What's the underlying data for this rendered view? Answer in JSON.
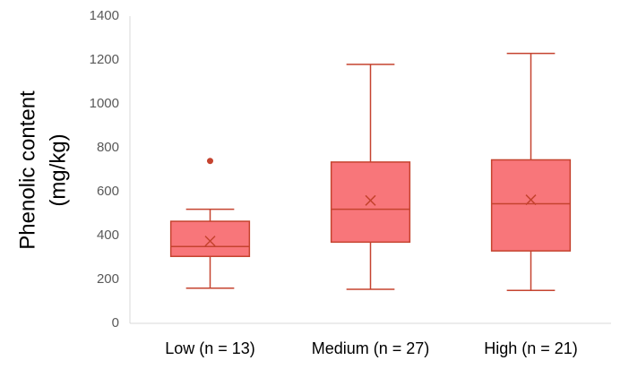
{
  "chart_data": {
    "type": "box",
    "y_label": [
      "Phenolic content",
      "(mg/kg)"
    ],
    "categories": [
      "Low (n = 13)",
      "Medium (n = 27)",
      "High (n = 21)"
    ],
    "boxes": [
      {
        "min": 160,
        "q1": 305,
        "median": 350,
        "q3": 465,
        "max": 520,
        "mean": 375,
        "outliers": [
          740
        ]
      },
      {
        "min": 155,
        "q1": 370,
        "median": 520,
        "q3": 735,
        "max": 1180,
        "mean": 560,
        "outliers": []
      },
      {
        "min": 150,
        "q1": 330,
        "median": 545,
        "q3": 745,
        "max": 1230,
        "mean": 563,
        "outliers": []
      }
    ],
    "fill": "#f8767a",
    "color": "#c5432f",
    "ylim": [
      0,
      1400
    ],
    "yticks": [
      0,
      200,
      400,
      600,
      800,
      1000,
      1200,
      1400
    ],
    "grid": false
  }
}
